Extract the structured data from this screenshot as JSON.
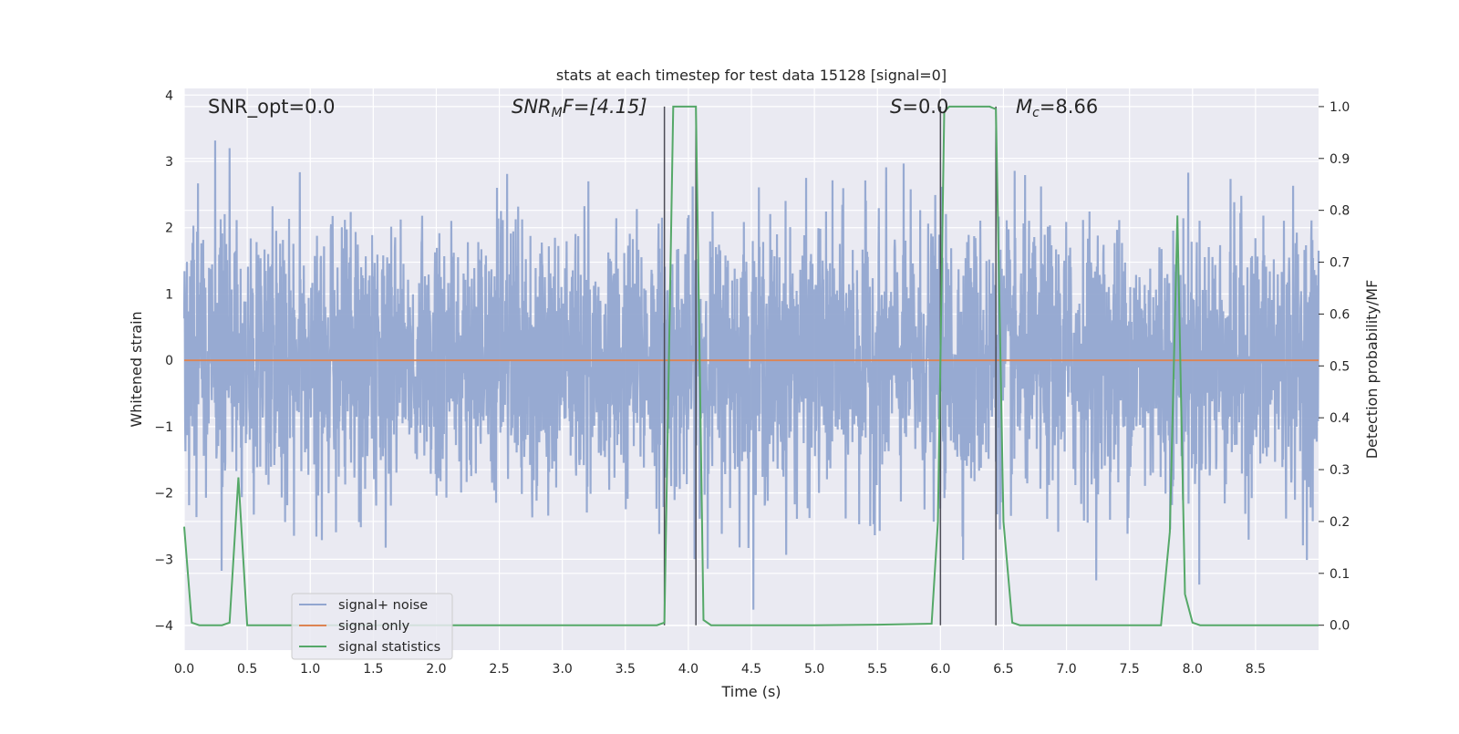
{
  "chart_data": {
    "type": "line",
    "title": "stats at each timestep for test data 15128 [signal=0]",
    "xlabel": "Time (s)",
    "ylabel_left": "Whitened strain",
    "ylabel_right": "Detection probability/MF",
    "xlim": [
      0,
      9.0
    ],
    "ylim_left": [
      -4.37,
      4.1
    ],
    "ylim_right": [
      -0.048,
      1.035
    ],
    "x_ticks": [
      "0.0",
      "0.5",
      "1.0",
      "1.5",
      "2.0",
      "2.5",
      "3.0",
      "3.5",
      "4.0",
      "4.5",
      "5.0",
      "5.5",
      "6.0",
      "6.5",
      "7.0",
      "7.5",
      "8.0",
      "8.5"
    ],
    "y_ticks_left": [
      "−4",
      "−3",
      "−2",
      "−1",
      "0",
      "1",
      "2",
      "3",
      "4"
    ],
    "y_ticks_right": [
      "0.0",
      "0.1",
      "0.2",
      "0.3",
      "0.4",
      "0.5",
      "0.6",
      "0.7",
      "0.8",
      "0.9",
      "1.0"
    ],
    "grid": true,
    "legend_position": "lower-left",
    "annotations": {
      "snr_opt": "SNR_opt=0.0",
      "snr_mf_main": "SNR",
      "snr_mf_sub": "M",
      "snr_mf_rest": "F=[4.15]",
      "s_main": "S",
      "s_rest": "=0.0",
      "mc_main": "M",
      "mc_sub": "c",
      "mc_rest": "=8.66"
    },
    "detection_intervals": [
      [
        3.81,
        4.06
      ],
      [
        6.0,
        6.44
      ]
    ],
    "series": [
      {
        "name": "signal+ noise",
        "axis": "left",
        "color": "#92a6d0",
        "style": "noise",
        "amplitude_std": 1.0,
        "x_range": [
          0,
          9.0
        ],
        "samples": 3700
      },
      {
        "name": "signal only",
        "axis": "left",
        "color": "#dd8452",
        "x": [
          0,
          9.0
        ],
        "y": [
          0,
          0
        ]
      },
      {
        "name": "signal statistics",
        "axis": "right",
        "color": "#55a868",
        "x": [
          0,
          0.06,
          0.12,
          0.3,
          0.36,
          0.43,
          0.5,
          1.0,
          2.0,
          3.0,
          3.75,
          3.81,
          3.88,
          4.06,
          4.12,
          4.18,
          4.5,
          5.0,
          5.5,
          5.93,
          5.98,
          6.03,
          6.07,
          6.39,
          6.44,
          6.5,
          6.57,
          6.63,
          7.0,
          7.5,
          7.75,
          7.82,
          7.88,
          7.94,
          8.0,
          8.06,
          8.5,
          9.0
        ],
        "y": [
          0.19,
          0.005,
          0.0,
          0.0,
          0.005,
          0.285,
          0.0,
          0.0,
          0.0,
          0.0,
          0.0,
          0.005,
          1.0,
          1.0,
          0.01,
          0.0,
          0.0,
          0.0,
          0.001,
          0.003,
          0.2,
          0.99,
          1.0,
          1.0,
          0.995,
          0.2,
          0.005,
          0.0,
          0.0,
          0.0,
          0.0,
          0.18,
          0.79,
          0.06,
          0.005,
          0.0,
          0.0,
          0.0
        ]
      }
    ]
  }
}
